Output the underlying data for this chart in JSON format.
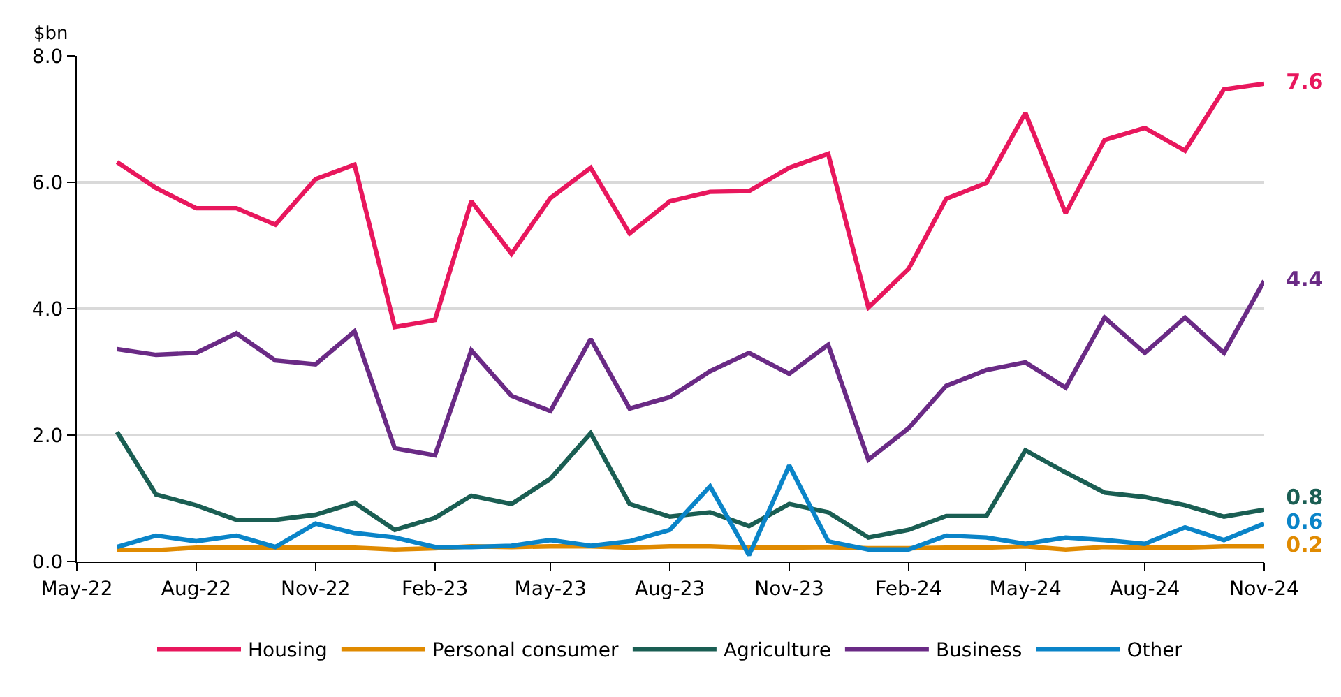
{
  "chart_data": {
    "type": "line",
    "ylabel": "$bn",
    "x": [
      "2022-06",
      "2022-07",
      "2022-08",
      "2022-09",
      "2022-10",
      "2022-11",
      "2022-12",
      "2023-01",
      "2023-02",
      "2023-03",
      "2023-04",
      "2023-05",
      "2023-06",
      "2023-07",
      "2023-08",
      "2023-09",
      "2023-10",
      "2023-11",
      "2023-12",
      "2024-01",
      "2024-02",
      "2024-03",
      "2024-04",
      "2024-05",
      "2024-06",
      "2024-07",
      "2024-08",
      "2024-09",
      "2024-10",
      "2024-11"
    ],
    "series": [
      {
        "name": "Housing",
        "color": "#e8175d",
        "values": [
          6.32,
          5.91,
          5.59,
          5.59,
          5.33,
          6.05,
          6.28,
          3.71,
          3.82,
          5.7,
          4.87,
          5.75,
          6.23,
          5.19,
          5.7,
          5.85,
          5.86,
          6.23,
          6.45,
          4.02,
          4.63,
          5.74,
          5.99,
          7.1,
          5.51,
          6.67,
          6.86,
          6.5,
          7.47,
          7.56
        ],
        "value_labels": [
          null,
          null,
          null,
          null,
          null,
          null,
          null,
          null,
          null,
          null,
          null,
          null,
          null,
          null,
          null,
          null,
          null,
          null,
          null,
          null,
          null,
          null,
          null,
          null,
          null,
          null,
          null,
          null,
          null,
          "7.6"
        ]
      },
      {
        "name": "Personal consumer",
        "color": "#e08a00",
        "values": [
          0.18,
          0.18,
          0.22,
          0.22,
          0.22,
          0.22,
          0.22,
          0.19,
          0.21,
          0.24,
          0.23,
          0.24,
          0.24,
          0.22,
          0.24,
          0.24,
          0.22,
          0.22,
          0.23,
          0.21,
          0.21,
          0.22,
          0.22,
          0.24,
          0.19,
          0.23,
          0.22,
          0.22,
          0.24,
          0.24
        ],
        "value_labels": [
          null,
          null,
          null,
          null,
          null,
          null,
          null,
          null,
          null,
          null,
          null,
          null,
          null,
          null,
          null,
          null,
          null,
          null,
          null,
          null,
          null,
          null,
          null,
          null,
          null,
          null,
          null,
          null,
          null,
          "0.2"
        ]
      },
      {
        "name": "Agriculture",
        "color": "#1a5e53",
        "values": [
          2.05,
          1.06,
          0.89,
          0.66,
          0.66,
          0.74,
          0.93,
          0.5,
          0.69,
          1.04,
          0.91,
          1.31,
          2.03,
          0.91,
          0.71,
          0.78,
          0.56,
          0.91,
          0.78,
          0.38,
          0.5,
          0.72,
          0.72,
          1.76,
          1.41,
          1.09,
          1.02,
          0.89,
          0.71,
          0.82
        ],
        "value_labels": [
          null,
          null,
          null,
          null,
          null,
          null,
          null,
          null,
          null,
          null,
          null,
          null,
          null,
          null,
          null,
          null,
          null,
          null,
          null,
          null,
          null,
          null,
          null,
          null,
          null,
          null,
          null,
          null,
          null,
          "0.8"
        ]
      },
      {
        "name": "Business",
        "color": "#6a2a85",
        "values": [
          3.36,
          3.27,
          3.3,
          3.61,
          3.18,
          3.12,
          3.64,
          1.79,
          1.68,
          3.34,
          2.62,
          2.38,
          3.52,
          2.42,
          2.6,
          3.01,
          3.3,
          2.97,
          3.43,
          1.61,
          2.11,
          2.78,
          3.03,
          3.15,
          2.75,
          3.86,
          3.3,
          3.86,
          3.3,
          4.44
        ],
        "value_labels": [
          null,
          null,
          null,
          null,
          null,
          null,
          null,
          null,
          null,
          null,
          null,
          null,
          null,
          null,
          null,
          null,
          null,
          null,
          null,
          null,
          null,
          null,
          null,
          null,
          null,
          null,
          null,
          null,
          null,
          "4.4"
        ]
      },
      {
        "name": "Other",
        "color": "#0a84c8",
        "values": [
          0.23,
          0.41,
          0.32,
          0.41,
          0.23,
          0.6,
          0.45,
          0.38,
          0.23,
          0.23,
          0.25,
          0.34,
          0.25,
          0.32,
          0.5,
          1.19,
          0.1,
          1.52,
          0.32,
          0.19,
          0.19,
          0.41,
          0.38,
          0.28,
          0.38,
          0.34,
          0.28,
          0.54,
          0.34,
          0.6
        ],
        "value_labels": [
          null,
          null,
          null,
          null,
          null,
          null,
          null,
          null,
          null,
          null,
          null,
          null,
          null,
          null,
          null,
          null,
          null,
          null,
          null,
          null,
          null,
          null,
          null,
          null,
          null,
          null,
          null,
          null,
          null,
          "0.6"
        ]
      }
    ],
    "xlim": [
      "2022-05",
      "2024-11"
    ],
    "xticks": [
      {
        "value": "2022-05",
        "label": "May-22"
      },
      {
        "value": "2022-08",
        "label": "Aug-22"
      },
      {
        "value": "2022-11",
        "label": "Nov-22"
      },
      {
        "value": "2023-02",
        "label": "Feb-23"
      },
      {
        "value": "2023-05",
        "label": "May-23"
      },
      {
        "value": "2023-08",
        "label": "Aug-23"
      },
      {
        "value": "2023-11",
        "label": "Nov-23"
      },
      {
        "value": "2024-02",
        "label": "Feb-24"
      },
      {
        "value": "2024-05",
        "label": "May-24"
      },
      {
        "value": "2024-08",
        "label": "Aug-24"
      },
      {
        "value": "2024-11",
        "label": "Nov-24"
      }
    ],
    "ylim": [
      0,
      8
    ],
    "yticks": [
      {
        "value": 0,
        "label": "0.0"
      },
      {
        "value": 2,
        "label": "2.0"
      },
      {
        "value": 4,
        "label": "4.0"
      },
      {
        "value": 6,
        "label": "6.0"
      },
      {
        "value": 8,
        "label": "8.0"
      }
    ],
    "grid": "y",
    "legend": "bottom",
    "marker": "none",
    "line_style": "solid"
  }
}
